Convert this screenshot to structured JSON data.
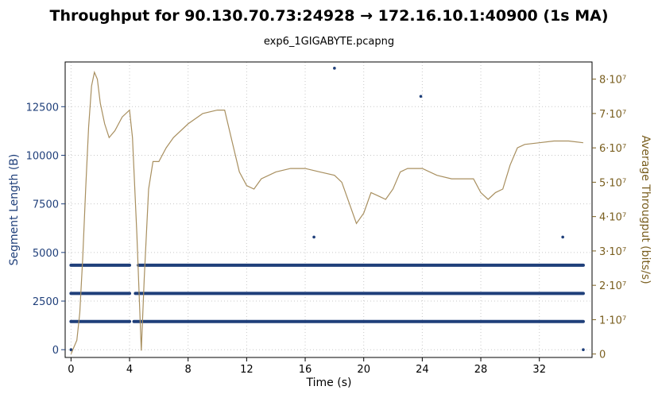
{
  "chart_data": {
    "type": "scatter",
    "title": "Throughput for 90.130.70.73:24928 → 172.16.10.1:40900 (1s MA)",
    "subtitle": "exp6_1GIGABYTE.pcapng",
    "xlabel": "Time (s)",
    "ylabel": "Segment Length (B)",
    "y2label": "Average Througput (bits/s)",
    "xlim": [
      -0.4,
      35.6
    ],
    "ylim": [
      -400,
      14800
    ],
    "y2lim": [
      -1000000,
      85000000
    ],
    "x_ticks": [
      "0",
      "4",
      "8",
      "12",
      "16",
      "20",
      "24",
      "28",
      "32"
    ],
    "y_ticks": [
      "0",
      "2500",
      "5000",
      "7500",
      "10000",
      "12500"
    ],
    "y2_ticks": [
      "0",
      "1·10⁷",
      "2·10⁷",
      "3·10⁷",
      "4·10⁷",
      "5·10⁷",
      "6·10⁷",
      "7·10⁷",
      "8·10⁷"
    ],
    "grid": true,
    "series": [
      {
        "type": "scatter-band",
        "axis": "left",
        "color": "#1f3f7a",
        "bands": [
          {
            "y": 4344,
            "segments": [
              [
                0,
                4
              ],
              [
                4.6,
                35
              ]
            ]
          },
          {
            "y": 2896,
            "segments": [
              [
                0,
                4
              ],
              [
                4.4,
                35
              ]
            ]
          },
          {
            "y": 1448,
            "segments": [
              [
                0,
                4
              ],
              [
                4.3,
                35
              ]
            ]
          }
        ],
        "outliers": [
          [
            0,
            0
          ],
          [
            18,
            14480
          ],
          [
            23.9,
            13032
          ],
          [
            16.6,
            5792
          ],
          [
            33.6,
            5792
          ],
          [
            35,
            0
          ]
        ]
      },
      {
        "type": "line",
        "axis": "right",
        "color": "#a88f5f",
        "points": [
          [
            0,
            0
          ],
          [
            0.2,
            2000000
          ],
          [
            0.4,
            4000000
          ],
          [
            0.6,
            12000000
          ],
          [
            0.8,
            28000000
          ],
          [
            1.0,
            48000000
          ],
          [
            1.2,
            66000000
          ],
          [
            1.4,
            78000000
          ],
          [
            1.6,
            82000000
          ],
          [
            1.8,
            80000000
          ],
          [
            2.0,
            73000000
          ],
          [
            2.3,
            67000000
          ],
          [
            2.6,
            63000000
          ],
          [
            3.0,
            65000000
          ],
          [
            3.5,
            69000000
          ],
          [
            4.0,
            71000000
          ],
          [
            4.2,
            63000000
          ],
          [
            4.5,
            35000000
          ],
          [
            4.8,
            1000000
          ],
          [
            5.0,
            22000000
          ],
          [
            5.3,
            48000000
          ],
          [
            5.6,
            56000000
          ],
          [
            6.0,
            56000000
          ],
          [
            6.5,
            60000000
          ],
          [
            7.0,
            63000000
          ],
          [
            8.0,
            67000000
          ],
          [
            9.0,
            70000000
          ],
          [
            10.0,
            71000000
          ],
          [
            10.5,
            71000000
          ],
          [
            11.0,
            62000000
          ],
          [
            11.5,
            53000000
          ],
          [
            12.0,
            49000000
          ],
          [
            12.5,
            48000000
          ],
          [
            13.0,
            51000000
          ],
          [
            14.0,
            53000000
          ],
          [
            15.0,
            54000000
          ],
          [
            16.0,
            54000000
          ],
          [
            17.0,
            53000000
          ],
          [
            18.0,
            52000000
          ],
          [
            18.5,
            50000000
          ],
          [
            19.0,
            44000000
          ],
          [
            19.5,
            38000000
          ],
          [
            20.0,
            41000000
          ],
          [
            20.5,
            47000000
          ],
          [
            21.0,
            46000000
          ],
          [
            21.5,
            45000000
          ],
          [
            22.0,
            48000000
          ],
          [
            22.5,
            53000000
          ],
          [
            23.0,
            54000000
          ],
          [
            24.0,
            54000000
          ],
          [
            25.0,
            52000000
          ],
          [
            26.0,
            51000000
          ],
          [
            27.5,
            51000000
          ],
          [
            28.0,
            47000000
          ],
          [
            28.5,
            45000000
          ],
          [
            29.0,
            47000000
          ],
          [
            29.5,
            48000000
          ],
          [
            30.0,
            55000000
          ],
          [
            30.5,
            60000000
          ],
          [
            31.0,
            61000000
          ],
          [
            32.0,
            61500000
          ],
          [
            33.0,
            62000000
          ],
          [
            34.0,
            62000000
          ],
          [
            35.0,
            61500000
          ]
        ]
      }
    ]
  }
}
